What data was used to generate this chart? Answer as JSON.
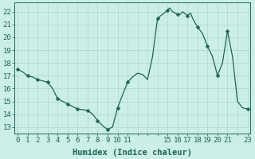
{
  "x": [
    0,
    0.5,
    1,
    1.5,
    2,
    2.5,
    3,
    3.5,
    4,
    4.5,
    5,
    5.5,
    6,
    6.5,
    7,
    7.5,
    8,
    8.5,
    9,
    9.5,
    10,
    10.5,
    11,
    11.5,
    12,
    12.5,
    13,
    13.5,
    14,
    14.5,
    15,
    15.2,
    15.5,
    16,
    16.3,
    16.5,
    17,
    17.3,
    17.5,
    18,
    18.5,
    19,
    19.5,
    20,
    20.5,
    21,
    21.5,
    22,
    22.5,
    23
  ],
  "y": [
    17.5,
    17.3,
    17.0,
    16.9,
    16.7,
    16.6,
    16.5,
    16.0,
    15.2,
    15.0,
    14.8,
    14.6,
    14.4,
    14.35,
    14.3,
    14.0,
    13.5,
    13.1,
    12.8,
    13.0,
    14.5,
    15.5,
    16.5,
    16.9,
    17.2,
    17.1,
    16.7,
    18.5,
    21.5,
    21.8,
    22.1,
    22.3,
    22.0,
    21.8,
    21.8,
    22.0,
    21.7,
    21.9,
    21.5,
    20.8,
    20.3,
    19.3,
    18.5,
    17.0,
    18.0,
    20.5,
    18.5,
    15.0,
    14.5,
    14.4
  ],
  "xtick_positions": [
    0,
    1,
    2,
    3,
    4,
    5,
    6,
    7,
    8,
    9,
    10,
    11,
    12,
    13,
    14,
    15,
    16,
    17,
    18,
    19,
    20,
    21,
    22,
    23
  ],
  "xtick_labels_shown": {
    "0": "0",
    "1": "1",
    "2": "2",
    "3": "3",
    "4": "4",
    "5": "5",
    "6": "6",
    "7": "7",
    "8": "8",
    "9": "9",
    "10": "10",
    "11": "11",
    "15": "15",
    "16": "16",
    "17": "17",
    "18": "18",
    "19": "19",
    "20": "20",
    "21": "21",
    "23": "23"
  },
  "line_color": "#1a6655",
  "marker_positions": [
    0,
    1,
    2,
    3,
    4,
    5,
    6,
    7,
    8,
    9,
    10,
    11,
    14,
    15,
    16,
    17,
    18,
    19,
    20,
    21,
    23
  ],
  "marker_values": [
    17.5,
    17.0,
    16.7,
    16.5,
    15.2,
    14.8,
    14.4,
    14.3,
    13.5,
    12.8,
    14.5,
    16.5,
    21.5,
    22.1,
    21.8,
    21.7,
    20.8,
    19.3,
    17.0,
    20.5,
    14.4
  ],
  "marker_size": 2.5,
  "bg_color": "#cceee8",
  "grid_major_color": "#b0d8cc",
  "grid_minor_color": "#c4e8e0",
  "xlabel": "Humidex (Indice chaleur)",
  "xlim": [
    -0.3,
    23.3
  ],
  "ylim": [
    12.5,
    22.7
  ],
  "yticks": [
    13,
    14,
    15,
    16,
    17,
    18,
    19,
    20,
    21,
    22
  ],
  "tick_fontsize": 6.5,
  "label_fontsize": 7.5,
  "tick_color": "#1a6655",
  "axis_color": "#1a6655"
}
